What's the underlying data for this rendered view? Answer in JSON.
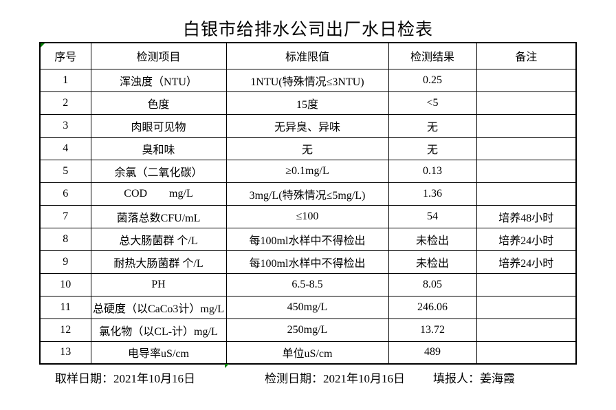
{
  "title": "白银市给排水公司出厂水日检表",
  "colors": {
    "background": "#ffffff",
    "border": "#000000",
    "marker_green": "#008000"
  },
  "table": {
    "headers": [
      "序号",
      "检测项目",
      "标准限值",
      "检测结果",
      "备注"
    ],
    "rows": [
      {
        "no": "1",
        "item": "浑浊度（NTU）",
        "limit": "1NTU(特殊情况≤3NTU)",
        "result": "0.25",
        "remark": ""
      },
      {
        "no": "2",
        "item": "色度",
        "limit": "15度",
        "result": "<5",
        "remark": ""
      },
      {
        "no": "3",
        "item": "肉眼可见物",
        "limit": "无异臭、异味",
        "result": "无",
        "remark": ""
      },
      {
        "no": "4",
        "item": "臭和味",
        "limit": "无",
        "result": "无",
        "remark": ""
      },
      {
        "no": "5",
        "item": "余氯（二氧化碳）",
        "limit": "≥0.1mg/L",
        "result": "0.13",
        "remark": ""
      },
      {
        "no": "6",
        "item": "COD        mg/L",
        "limit": "3mg/L(特殊情况≤5mg/L)",
        "result": "1.36",
        "remark": ""
      },
      {
        "no": "7",
        "item": "菌落总数CFU/mL",
        "limit": "≤100",
        "result": "54",
        "remark": "培养48小时"
      },
      {
        "no": "8",
        "item": "总大肠菌群 个/L",
        "limit": "每100ml水样中不得检出",
        "result": "未检出",
        "remark": "培养24小时"
      },
      {
        "no": "9",
        "item": "耐热大肠菌群 个/L",
        "limit": "每100ml水样中不得检出",
        "result": "未检出",
        "remark": "培养24小时"
      },
      {
        "no": "10",
        "item": "PH",
        "limit": "6.5-8.5",
        "result": "8.05",
        "remark": ""
      },
      {
        "no": "11",
        "item": "总硬度（以CaCo3计）mg/L",
        "limit": "450mg/L",
        "result": "246.06",
        "remark": ""
      },
      {
        "no": "12",
        "item": "氯化物（以CL-计）mg/L",
        "limit": "250mg/L",
        "result": "13.72",
        "remark": ""
      },
      {
        "no": "13",
        "item": "电导率uS/cm",
        "limit": "单位uS/cm",
        "result": "489",
        "remark": ""
      }
    ]
  },
  "footer": {
    "sample_date_label": "取样日期：",
    "sample_date": "2021年10月16日",
    "test_date_label": "检测日期：",
    "test_date": "2021年10月16日",
    "reporter_label": "填报人：",
    "reporter": "姜海霞"
  }
}
